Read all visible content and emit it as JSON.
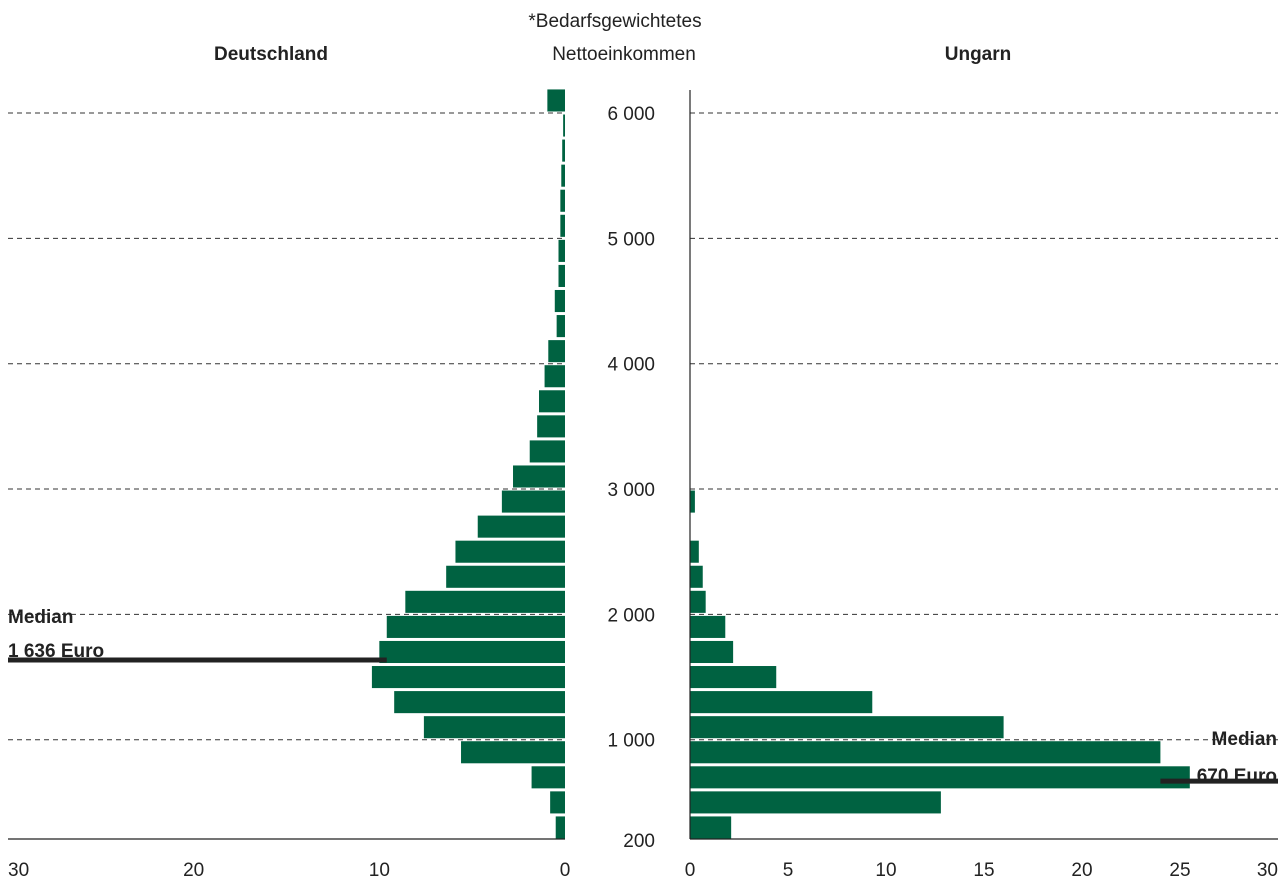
{
  "chart_data": {
    "type": "bar",
    "orientation": "horizontal",
    "layout": "back-to-back",
    "note_lines": [
      "*Bedarfsgewichtetes",
      "Nettoeinkommen"
    ],
    "bar_color": "#006241",
    "y_axis": {
      "tick_labels": [
        "200",
        "1 000",
        "2 000",
        "3 000",
        "4 000",
        "5 000",
        "6 000"
      ],
      "ticks": [
        200,
        1000,
        2000,
        3000,
        4000,
        5000,
        6000
      ],
      "range": [
        150,
        6200
      ],
      "gridlines": [
        1000,
        2000,
        3000,
        4000,
        5000,
        6000
      ]
    },
    "panels": [
      {
        "side": "left",
        "title": "Deutschland",
        "x_ticks": [
          30,
          20,
          10,
          0
        ],
        "x_tick_labels": [
          "30",
          "20",
          "10",
          "0"
        ],
        "xlim": [
          0,
          30
        ],
        "bins": [
          {
            "y": 300,
            "v": 0.5
          },
          {
            "y": 500,
            "v": 0.8
          },
          {
            "y": 700,
            "v": 1.8
          },
          {
            "y": 900,
            "v": 5.6
          },
          {
            "y": 1100,
            "v": 7.6
          },
          {
            "y": 1300,
            "v": 9.2
          },
          {
            "y": 1500,
            "v": 10.4
          },
          {
            "y": 1700,
            "v": 10.0
          },
          {
            "y": 1900,
            "v": 9.6
          },
          {
            "y": 2100,
            "v": 8.6
          },
          {
            "y": 2300,
            "v": 6.4
          },
          {
            "y": 2500,
            "v": 5.9
          },
          {
            "y": 2700,
            "v": 4.7
          },
          {
            "y": 2900,
            "v": 3.4
          },
          {
            "y": 3100,
            "v": 2.8
          },
          {
            "y": 3300,
            "v": 1.9
          },
          {
            "y": 3500,
            "v": 1.5
          },
          {
            "y": 3700,
            "v": 1.4
          },
          {
            "y": 3900,
            "v": 1.1
          },
          {
            "y": 4100,
            "v": 0.9
          },
          {
            "y": 4300,
            "v": 0.45
          },
          {
            "y": 4500,
            "v": 0.55
          },
          {
            "y": 4700,
            "v": 0.35
          },
          {
            "y": 4900,
            "v": 0.35
          },
          {
            "y": 5100,
            "v": 0.25
          },
          {
            "y": 5300,
            "v": 0.25
          },
          {
            "y": 5500,
            "v": 0.2
          },
          {
            "y": 5700,
            "v": 0.15
          },
          {
            "y": 5900,
            "v": 0.1
          },
          {
            "y": 6100,
            "v": 0.95
          }
        ],
        "median": {
          "value": 1636,
          "label_line1": "Median",
          "label_line2": "1 636 Euro"
        }
      },
      {
        "side": "right",
        "title": "Ungarn",
        "x_ticks": [
          0,
          5,
          10,
          15,
          20,
          25,
          30
        ],
        "x_tick_labels": [
          "0",
          "5",
          "10",
          "15",
          "20",
          "25",
          "30"
        ],
        "xlim": [
          0,
          30
        ],
        "bins": [
          {
            "y": 300,
            "v": 2.1
          },
          {
            "y": 500,
            "v": 12.8
          },
          {
            "y": 700,
            "v": 25.5
          },
          {
            "y": 900,
            "v": 24.0
          },
          {
            "y": 1100,
            "v": 16.0
          },
          {
            "y": 1300,
            "v": 9.3
          },
          {
            "y": 1500,
            "v": 4.4
          },
          {
            "y": 1700,
            "v": 2.2
          },
          {
            "y": 1900,
            "v": 1.8
          },
          {
            "y": 2100,
            "v": 0.8
          },
          {
            "y": 2300,
            "v": 0.65
          },
          {
            "y": 2500,
            "v": 0.45
          },
          {
            "y": 2900,
            "v": 0.25
          }
        ],
        "median": {
          "value": 670,
          "label_line1": "Median",
          "label_line2": "670 Euro"
        }
      }
    ]
  }
}
